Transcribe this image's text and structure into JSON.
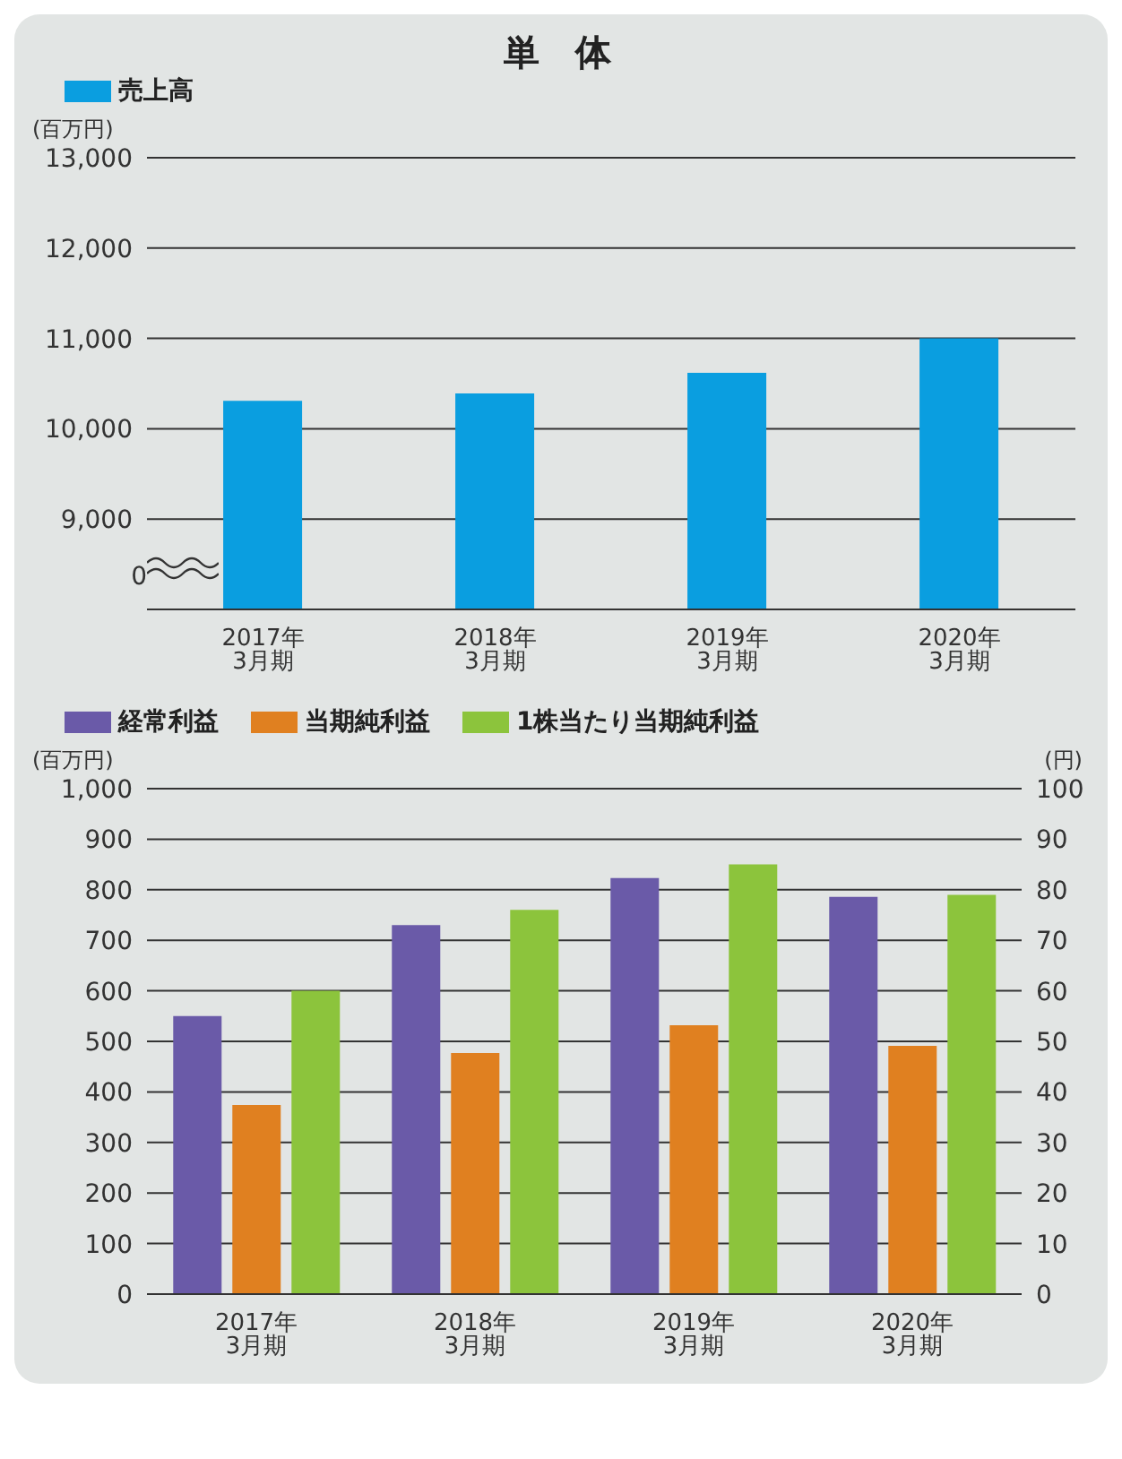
{
  "chart_data": [
    {
      "type": "bar",
      "title": "単　体",
      "ylabel": "(百万円)",
      "categories": [
        "2017年\n3月期",
        "2018年\n3月期",
        "2019年\n3月期",
        "2020年\n3月期"
      ],
      "series": [
        {
          "name": "売上高",
          "color": "#0a9ee0",
          "values": [
            10310,
            10390,
            10620,
            11000
          ]
        }
      ],
      "annotations": [
        "0"
      ],
      "ylim": [
        8000,
        13000
      ],
      "yticks": [
        {
          "value": 8000,
          "label": null
        },
        {
          "value": 9000,
          "label": "9,000"
        },
        {
          "value": 10000,
          "label": "10,000"
        },
        {
          "value": 11000,
          "label": "11,000"
        },
        {
          "value": 12000,
          "label": "12,000"
        },
        {
          "value": 13000,
          "label": "13,000"
        }
      ],
      "grid": "y",
      "legend": "top left"
    },
    {
      "type": "bar",
      "ylabel": "(百万円)",
      "y2label": "(円)",
      "categories": [
        "2017年\n3月期",
        "2018年\n3月期",
        "2019年\n3月期",
        "2020年\n3月期"
      ],
      "series": [
        {
          "name": "経常利益",
          "color": "#6a5aa8",
          "values": [
            550,
            730,
            823,
            786
          ]
        },
        {
          "name": "当期純利益",
          "color": "#e08020",
          "values": [
            374,
            477,
            532,
            491
          ]
        },
        {
          "name": "1株当たり当期純利益",
          "color": "#8cc43c",
          "values": [
            60,
            76,
            85,
            79
          ],
          "axis": "y2"
        }
      ],
      "ylim": [
        0,
        1000
      ],
      "yticks": [
        0,
        100,
        200,
        300,
        400,
        500,
        600,
        700,
        800,
        900,
        {
          "value": 1000,
          "label": "1,000"
        }
      ],
      "y2lim": [
        0,
        100
      ],
      "y2ticks": [
        0,
        10,
        20,
        30,
        40,
        50,
        60,
        70,
        80,
        90,
        100
      ],
      "grid": "y",
      "legend": "top left"
    }
  ]
}
